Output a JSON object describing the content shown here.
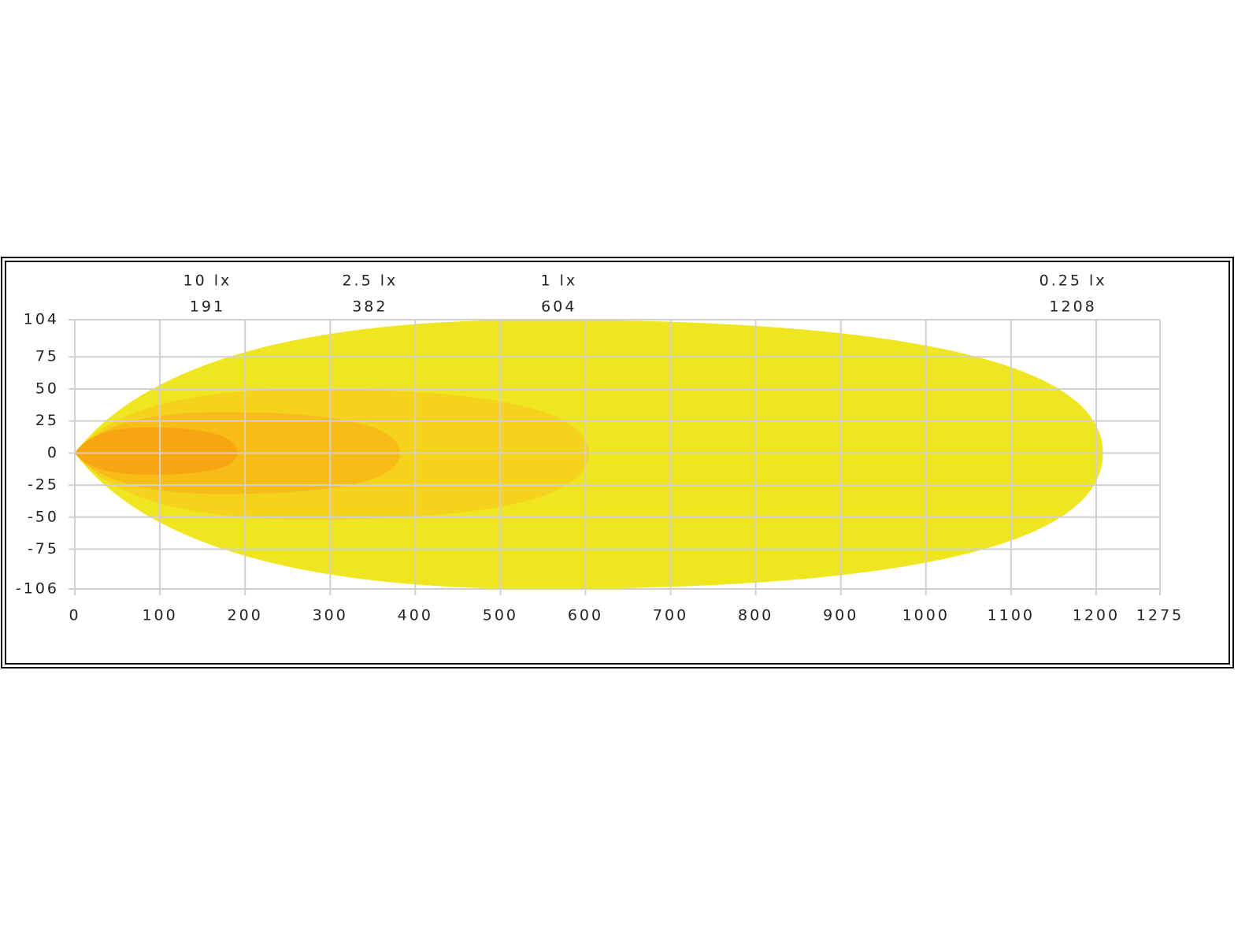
{
  "chart_data": {
    "type": "isolux",
    "xlim": [
      0,
      1275
    ],
    "xticks": [
      0,
      100,
      200,
      300,
      400,
      500,
      600,
      700,
      800,
      900,
      1000,
      1100,
      1200,
      1275
    ],
    "ylim": [
      -106,
      104
    ],
    "yticks": [
      104,
      75,
      50,
      25,
      0,
      -25,
      -50,
      -75,
      -106
    ],
    "grid": true,
    "series": [
      {
        "name": "0.25 lx",
        "color": "#f0e620",
        "distance": 1208,
        "upper": 104,
        "lower": -106
      },
      {
        "name": "1 lx",
        "color": "#f5d31c",
        "distance": 604,
        "upper": 50,
        "lower": -52
      },
      {
        "name": "2.5 lx",
        "color": "#f7bd16",
        "distance": 382,
        "upper": 32,
        "lower": -32
      },
      {
        "name": "10 lx",
        "color": "#f7a510",
        "distance": 191,
        "upper": 20,
        "lower": -17
      }
    ]
  }
}
